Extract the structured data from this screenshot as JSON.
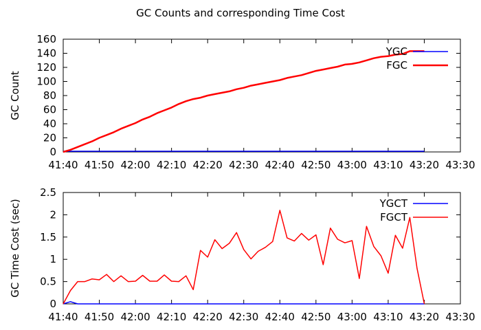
{
  "title": "GC Counts and corresponding Time Cost",
  "chart_data": [
    {
      "type": "line",
      "ylabel": "GC Count",
      "xlabel": "",
      "ylim": [
        0,
        160
      ],
      "yticks": [
        "0",
        "20",
        "40",
        "60",
        "80",
        "100",
        "120",
        "140",
        "160"
      ],
      "xlim": [
        0,
        110
      ],
      "xticks": [
        {
          "v": 0,
          "label": "41:40"
        },
        {
          "v": 10,
          "label": "41:50"
        },
        {
          "v": 20,
          "label": "42:00"
        },
        {
          "v": 30,
          "label": "42:10"
        },
        {
          "v": 40,
          "label": "42:20"
        },
        {
          "v": 50,
          "label": "42:30"
        },
        {
          "v": 60,
          "label": "42:40"
        },
        {
          "v": 70,
          "label": "42:50"
        },
        {
          "v": 80,
          "label": "43:00"
        },
        {
          "v": 90,
          "label": "43:10"
        },
        {
          "v": 100,
          "label": "43:20"
        },
        {
          "v": 110,
          "label": "43:30"
        }
      ],
      "grid": false,
      "legend": "top-right",
      "series": [
        {
          "name": "YGC",
          "color": "#0000ff",
          "x": [
            0,
            100
          ],
          "y": [
            1,
            1
          ]
        },
        {
          "name": "FGC",
          "color": "#ff0000",
          "x": [
            0,
            2,
            4,
            6,
            8,
            10,
            12,
            14,
            16,
            18,
            20,
            22,
            24,
            26,
            28,
            30,
            32,
            34,
            36,
            38,
            40,
            42,
            44,
            46,
            48,
            50,
            52,
            54,
            56,
            58,
            60,
            62,
            64,
            66,
            68,
            70,
            72,
            74,
            76,
            78,
            80,
            82,
            84,
            86,
            88,
            90,
            92,
            94,
            96,
            98,
            100
          ],
          "y": [
            0,
            3,
            7,
            11,
            15,
            20,
            24,
            28,
            33,
            37,
            41,
            46,
            50,
            55,
            59,
            63,
            68,
            72,
            75,
            77,
            80,
            82,
            84,
            86,
            89,
            91,
            94,
            96,
            98,
            100,
            102,
            105,
            107,
            109,
            112,
            115,
            117,
            119,
            121,
            124,
            125,
            127,
            130,
            133,
            135,
            136,
            138,
            139,
            143,
            143,
            143
          ]
        }
      ]
    },
    {
      "type": "line",
      "ylabel": "GC Time Cost (sec)",
      "xlabel": "",
      "ylim": [
        0,
        2.5
      ],
      "yticks": [
        "0",
        "0.5",
        "1",
        "1.5",
        "2",
        "2.5"
      ],
      "xlim": [
        0,
        110
      ],
      "xticks": [
        {
          "v": 0,
          "label": "41:40"
        },
        {
          "v": 10,
          "label": "41:50"
        },
        {
          "v": 20,
          "label": "42:00"
        },
        {
          "v": 30,
          "label": "42:10"
        },
        {
          "v": 40,
          "label": "42:20"
        },
        {
          "v": 50,
          "label": "42:30"
        },
        {
          "v": 60,
          "label": "42:40"
        },
        {
          "v": 70,
          "label": "42:50"
        },
        {
          "v": 80,
          "label": "43:00"
        },
        {
          "v": 90,
          "label": "43:10"
        },
        {
          "v": 100,
          "label": "43:20"
        },
        {
          "v": 110,
          "label": "43:30"
        }
      ],
      "grid": false,
      "legend": "top-right",
      "series": [
        {
          "name": "YGCT",
          "color": "#0000ff",
          "x": [
            0,
            2,
            4,
            100
          ],
          "y": [
            0,
            0.05,
            0,
            0
          ]
        },
        {
          "name": "FGCT",
          "color": "#ff0000",
          "x": [
            0,
            2,
            4,
            6,
            8,
            10,
            12,
            14,
            16,
            18,
            20,
            22,
            24,
            26,
            28,
            30,
            32,
            34,
            36,
            38,
            40,
            42,
            44,
            46,
            48,
            50,
            52,
            54,
            56,
            58,
            60,
            62,
            64,
            66,
            68,
            70,
            72,
            74,
            76,
            78,
            80,
            82,
            84,
            86,
            88,
            90,
            92,
            94,
            96,
            98,
            100
          ],
          "y": [
            0,
            0.3,
            0.5,
            0.5,
            0.56,
            0.54,
            0.66,
            0.5,
            0.63,
            0.5,
            0.51,
            0.64,
            0.51,
            0.51,
            0.65,
            0.51,
            0.5,
            0.63,
            0.32,
            1.2,
            1.05,
            1.44,
            1.24,
            1.36,
            1.6,
            1.22,
            1.01,
            1.18,
            1.27,
            1.4,
            2.1,
            1.48,
            1.41,
            1.58,
            1.43,
            1.55,
            0.88,
            1.7,
            1.45,
            1.37,
            1.42,
            0.57,
            1.74,
            1.29,
            1.08,
            0.69,
            1.54,
            1.25,
            1.94,
            0.8,
            0
          ]
        }
      ]
    }
  ]
}
